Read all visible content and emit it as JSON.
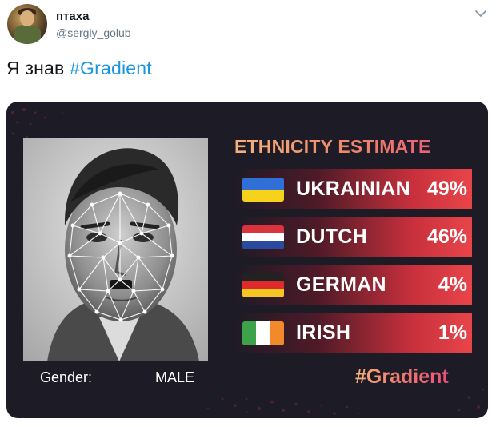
{
  "tweet": {
    "display_name": "птаха",
    "handle": "@sergiy_golub",
    "text_prefix": "Я знав ",
    "hashtag": "#Gradient"
  },
  "card": {
    "title": "ETHNICITY ESTIMATE",
    "gender_label": "Gender:",
    "gender_value": "MALE",
    "brand_tag": "#Gradient",
    "rows": [
      {
        "country": "UKRAINIAN",
        "percent": "49%",
        "flag": "flag-ukraine"
      },
      {
        "country": "DUTCH",
        "percent": "46%",
        "flag": "flag-netherlands"
      },
      {
        "country": "GERMAN",
        "percent": "4%",
        "flag": "flag-germany"
      },
      {
        "country": "IRISH",
        "percent": "1%",
        "flag": "flag-ireland"
      }
    ]
  },
  "icons": [
    "chevron-down-icon",
    "face-mesh-icon"
  ],
  "colors": {
    "hashtag": "#1b95e0",
    "card_bg": "#1d1b26",
    "accent_red": "#e8454a",
    "title_orange": "#f6b27a",
    "title_pink": "#e8507a"
  }
}
